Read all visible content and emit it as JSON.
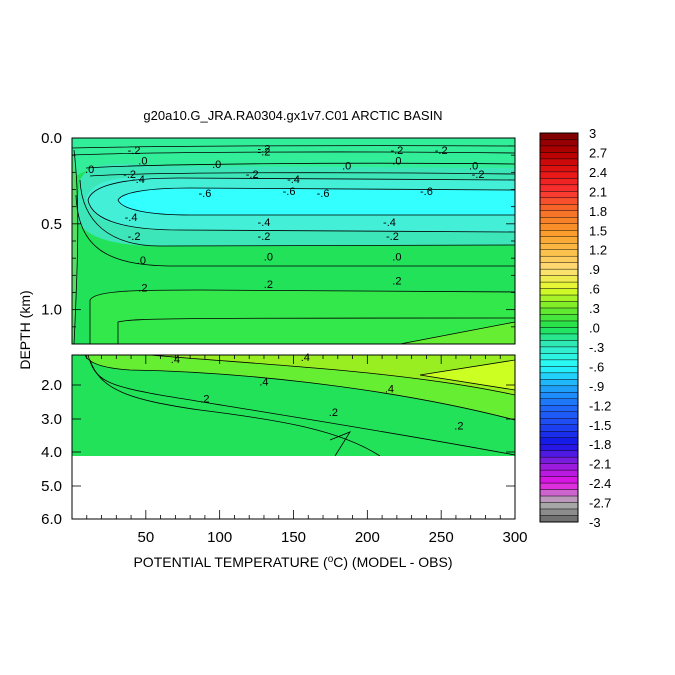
{
  "chart_data": {
    "type": "heatmap",
    "title": "g20a10.G_JRA.RA0304.gx1v7.C01 ARCTIC BASIN",
    "xlabel": "POTENTIAL TEMPERATURE (",
    "xlabel_unit": "C) (MODEL - OBS)",
    "ylabel": "DEPTH (km)",
    "x_range": [
      0,
      300
    ],
    "x_ticks": [
      "50",
      "100",
      "150",
      "200",
      "250",
      "300"
    ],
    "x_tick_values": [
      50,
      100,
      150,
      200,
      250,
      300
    ],
    "upper_panel": {
      "depth_range_km": [
        0.0,
        1.2
      ],
      "y_ticks": [
        "0.0",
        "0.5",
        "1.0"
      ],
      "y_tick_values": [
        0.0,
        0.5,
        1.0
      ]
    },
    "lower_panel": {
      "depth_range_km": [
        1.2,
        6.0
      ],
      "y_ticks": [
        "2.0",
        "3.0",
        "4.0",
        "5.0",
        "6.0"
      ],
      "y_tick_values": [
        2.0,
        3.0,
        4.0,
        5.0,
        6.0
      ],
      "data_bottom_km": 4.1
    },
    "contour_labels_upper": [
      {
        "x": 42,
        "depth": 0.07,
        "text": "-.2"
      },
      {
        "x": 130,
        "depth": 0.06,
        "text": "-.2"
      },
      {
        "x": 130,
        "depth": 0.08,
        "text": "-.2"
      },
      {
        "x": 250,
        "depth": 0.07,
        "text": "-.2"
      },
      {
        "x": 220,
        "depth": 0.07,
        "text": "-.2"
      },
      {
        "x": 48,
        "depth": 0.13,
        "text": ".0"
      },
      {
        "x": 12,
        "depth": 0.18,
        "text": ".0"
      },
      {
        "x": 98,
        "depth": 0.15,
        "text": ".0"
      },
      {
        "x": 186,
        "depth": 0.16,
        "text": ".0"
      },
      {
        "x": 220,
        "depth": 0.13,
        "text": ".0"
      },
      {
        "x": 272,
        "depth": 0.16,
        "text": ".0"
      },
      {
        "x": 39,
        "depth": 0.21,
        "text": "-.2"
      },
      {
        "x": 122,
        "depth": 0.21,
        "text": "-.2"
      },
      {
        "x": 275,
        "depth": 0.21,
        "text": "-.2"
      },
      {
        "x": 45,
        "depth": 0.24,
        "text": "-.4"
      },
      {
        "x": 150,
        "depth": 0.24,
        "text": "-.4"
      },
      {
        "x": 90,
        "depth": 0.32,
        "text": "-.6"
      },
      {
        "x": 147,
        "depth": 0.31,
        "text": "-.6"
      },
      {
        "x": 170,
        "depth": 0.32,
        "text": "-.6"
      },
      {
        "x": 240,
        "depth": 0.31,
        "text": "-.6"
      },
      {
        "x": 40,
        "depth": 0.46,
        "text": "-.4"
      },
      {
        "x": 130,
        "depth": 0.49,
        "text": "-.4"
      },
      {
        "x": 215,
        "depth": 0.49,
        "text": "-.4"
      },
      {
        "x": 42,
        "depth": 0.57,
        "text": "-.2"
      },
      {
        "x": 130,
        "depth": 0.57,
        "text": "-.2"
      },
      {
        "x": 217,
        "depth": 0.57,
        "text": "-.2"
      },
      {
        "x": 47,
        "depth": 0.71,
        "text": ".0"
      },
      {
        "x": 133,
        "depth": 0.69,
        "text": ".0"
      },
      {
        "x": 220,
        "depth": 0.69,
        "text": ".0"
      },
      {
        "x": 48,
        "depth": 0.87,
        "text": ".2"
      },
      {
        "x": 133,
        "depth": 0.85,
        "text": ".2"
      },
      {
        "x": 220,
        "depth": 0.83,
        "text": ".2"
      }
    ],
    "contour_labels_lower": [
      {
        "x": 70,
        "depth": 1.3,
        "text": ".4"
      },
      {
        "x": 158,
        "depth": 1.25,
        "text": ".4"
      },
      {
        "x": 130,
        "depth": 1.9,
        "text": ".4"
      },
      {
        "x": 215,
        "depth": 2.1,
        "text": ".4"
      },
      {
        "x": 90,
        "depth": 2.4,
        "text": ".2"
      },
      {
        "x": 177,
        "depth": 2.8,
        "text": ".2"
      },
      {
        "x": 262,
        "depth": 3.2,
        "text": ".2"
      }
    ],
    "colorbar": {
      "min": -3,
      "max": 3,
      "labels": [
        "3",
        "2.7",
        "2.4",
        "2.1",
        "1.8",
        "1.5",
        "1.2",
        ".9",
        ".6",
        ".3",
        ".0",
        "-.3",
        "-.6",
        "-.9",
        "-1.2",
        "-1.5",
        "-1.8",
        "-2.1",
        "-2.4",
        "-2.7",
        "-3"
      ],
      "label_values": [
        3,
        2.7,
        2.4,
        2.1,
        1.8,
        1.5,
        1.2,
        0.9,
        0.6,
        0.3,
        0.0,
        -0.3,
        -0.6,
        -0.9,
        -1.2,
        -1.5,
        -1.8,
        -2.1,
        -2.4,
        -2.7,
        -3
      ]
    },
    "colors": {
      "band_-0.6": "#33ffff",
      "band_-0.4": "#3df2cc",
      "band_-0.2": "#22dd88",
      "band_0.0": "#22e25a",
      "band_0.2": "#22e85a",
      "band_0.3": "#55ee44",
      "band_0.4": "#99ee22",
      "band_0.5": "#ccff22"
    }
  }
}
